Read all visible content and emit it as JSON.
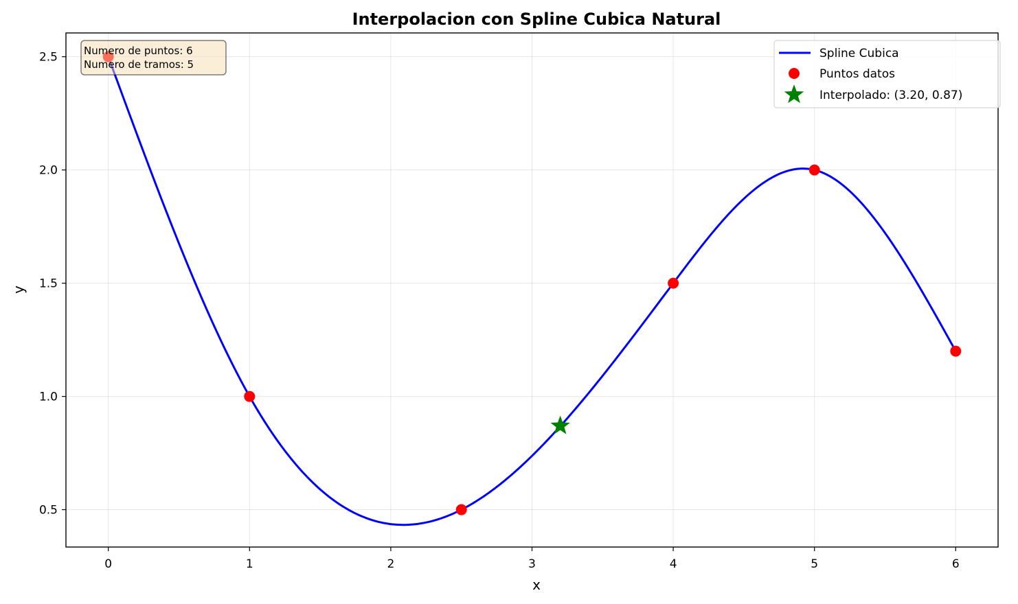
{
  "chart_data": {
    "type": "line",
    "title": "Interpolacion con Spline Cubica Natural",
    "xlabel": "x",
    "ylabel": "y",
    "xlim": [
      -0.3,
      6.3
    ],
    "ylim": [
      0.335,
      2.605
    ],
    "grid": true,
    "legend_position": "top-right",
    "xticks": [
      0,
      1,
      2,
      3,
      4,
      5,
      6
    ],
    "xtick_labels": [
      "0",
      "1",
      "2",
      "3",
      "4",
      "5",
      "6"
    ],
    "yticks": [
      0.5,
      1.0,
      1.5,
      2.0,
      2.5
    ],
    "ytick_labels": [
      "0.5",
      "1.0",
      "1.5",
      "2.0",
      "2.5"
    ],
    "data_points": {
      "x": [
        0,
        1,
        2.5,
        4,
        5,
        6
      ],
      "y": [
        2.5,
        1.0,
        0.5,
        1.5,
        2.0,
        1.2
      ]
    },
    "interpolated_point": {
      "x": 3.2,
      "y": 0.87
    },
    "series": [
      {
        "name": "Spline Cubica",
        "kind": "line",
        "color": "#0000ff"
      },
      {
        "name": "Puntos datos",
        "kind": "marker-circle",
        "color": "#ff0000"
      },
      {
        "name": "Interpolado: (3.20, 0.87)",
        "kind": "marker-star",
        "color": "#008000"
      }
    ],
    "info_box": {
      "lines": [
        "Numero de puntos: 6",
        "Numero de tramos: 5"
      ],
      "background": "#f5deb3"
    }
  }
}
